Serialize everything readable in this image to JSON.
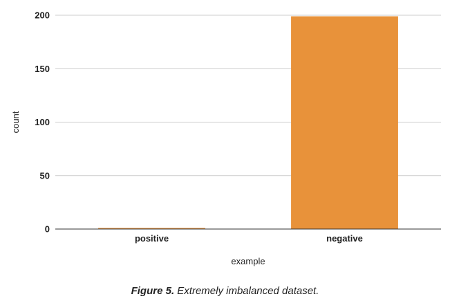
{
  "chart_data": {
    "type": "bar",
    "categories": [
      "positive",
      "negative"
    ],
    "values": [
      1,
      199
    ],
    "xlabel": "example",
    "ylabel": "count",
    "ylim": [
      0,
      200
    ],
    "yticks": [
      0,
      50,
      100,
      150,
      200
    ],
    "grid": true,
    "bar_color": "#e8923a",
    "gridline_color": "#cccccc",
    "axis_color": "#333333"
  },
  "caption": {
    "label": "Figure 5.",
    "text": " Extremely imbalanced dataset."
  }
}
